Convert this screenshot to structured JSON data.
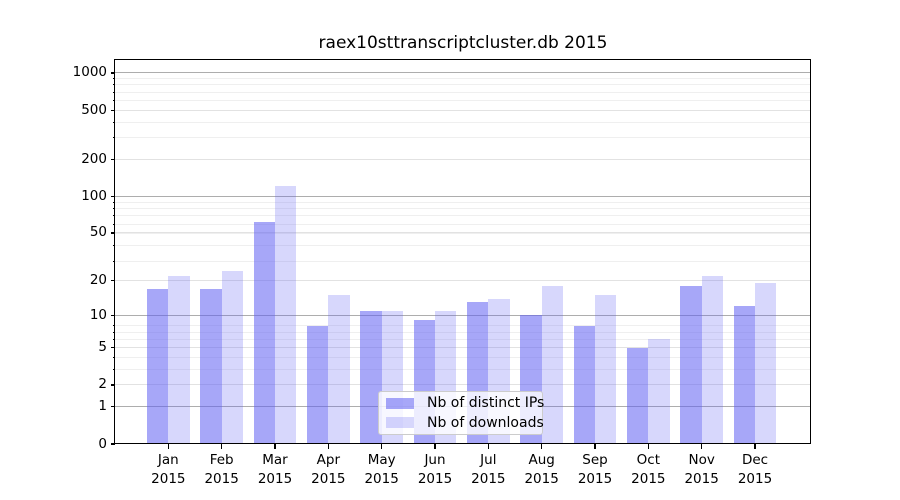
{
  "chart_data": {
    "type": "bar",
    "title": "raex10sttranscriptcluster.db 2015",
    "categories": [
      "Jan",
      "Feb",
      "Mar",
      "Apr",
      "May",
      "Jun",
      "Jul",
      "Aug",
      "Sep",
      "Oct",
      "Nov",
      "Dec"
    ],
    "x_tick_second_line": "2015",
    "series": [
      {
        "name": "Nb of distinct IPs",
        "color": "rgba(95,95,242,0.55)",
        "values": [
          17,
          17,
          61,
          8,
          11,
          9,
          13,
          10,
          8,
          5,
          18,
          12
        ]
      },
      {
        "name": "Nb of downloads",
        "color": "rgba(95,95,242,0.25)",
        "values": [
          22,
          24,
          120,
          15,
          11,
          11,
          14,
          18,
          15,
          6,
          22,
          19
        ]
      }
    ],
    "y_ticks": [
      0,
      1,
      2,
      5,
      10,
      20,
      50,
      100,
      200,
      500,
      1000
    ],
    "y_major_ticks": [
      1,
      10,
      100,
      1000
    ],
    "scale": "log1p",
    "ylim": [
      0,
      1273
    ],
    "grid": true,
    "legend_position": "lower center",
    "colors": {
      "grid_major": "#adadad",
      "grid_labeled": "#e2e2e2",
      "grid_minor": "#efefef",
      "spine": "#000000"
    }
  }
}
